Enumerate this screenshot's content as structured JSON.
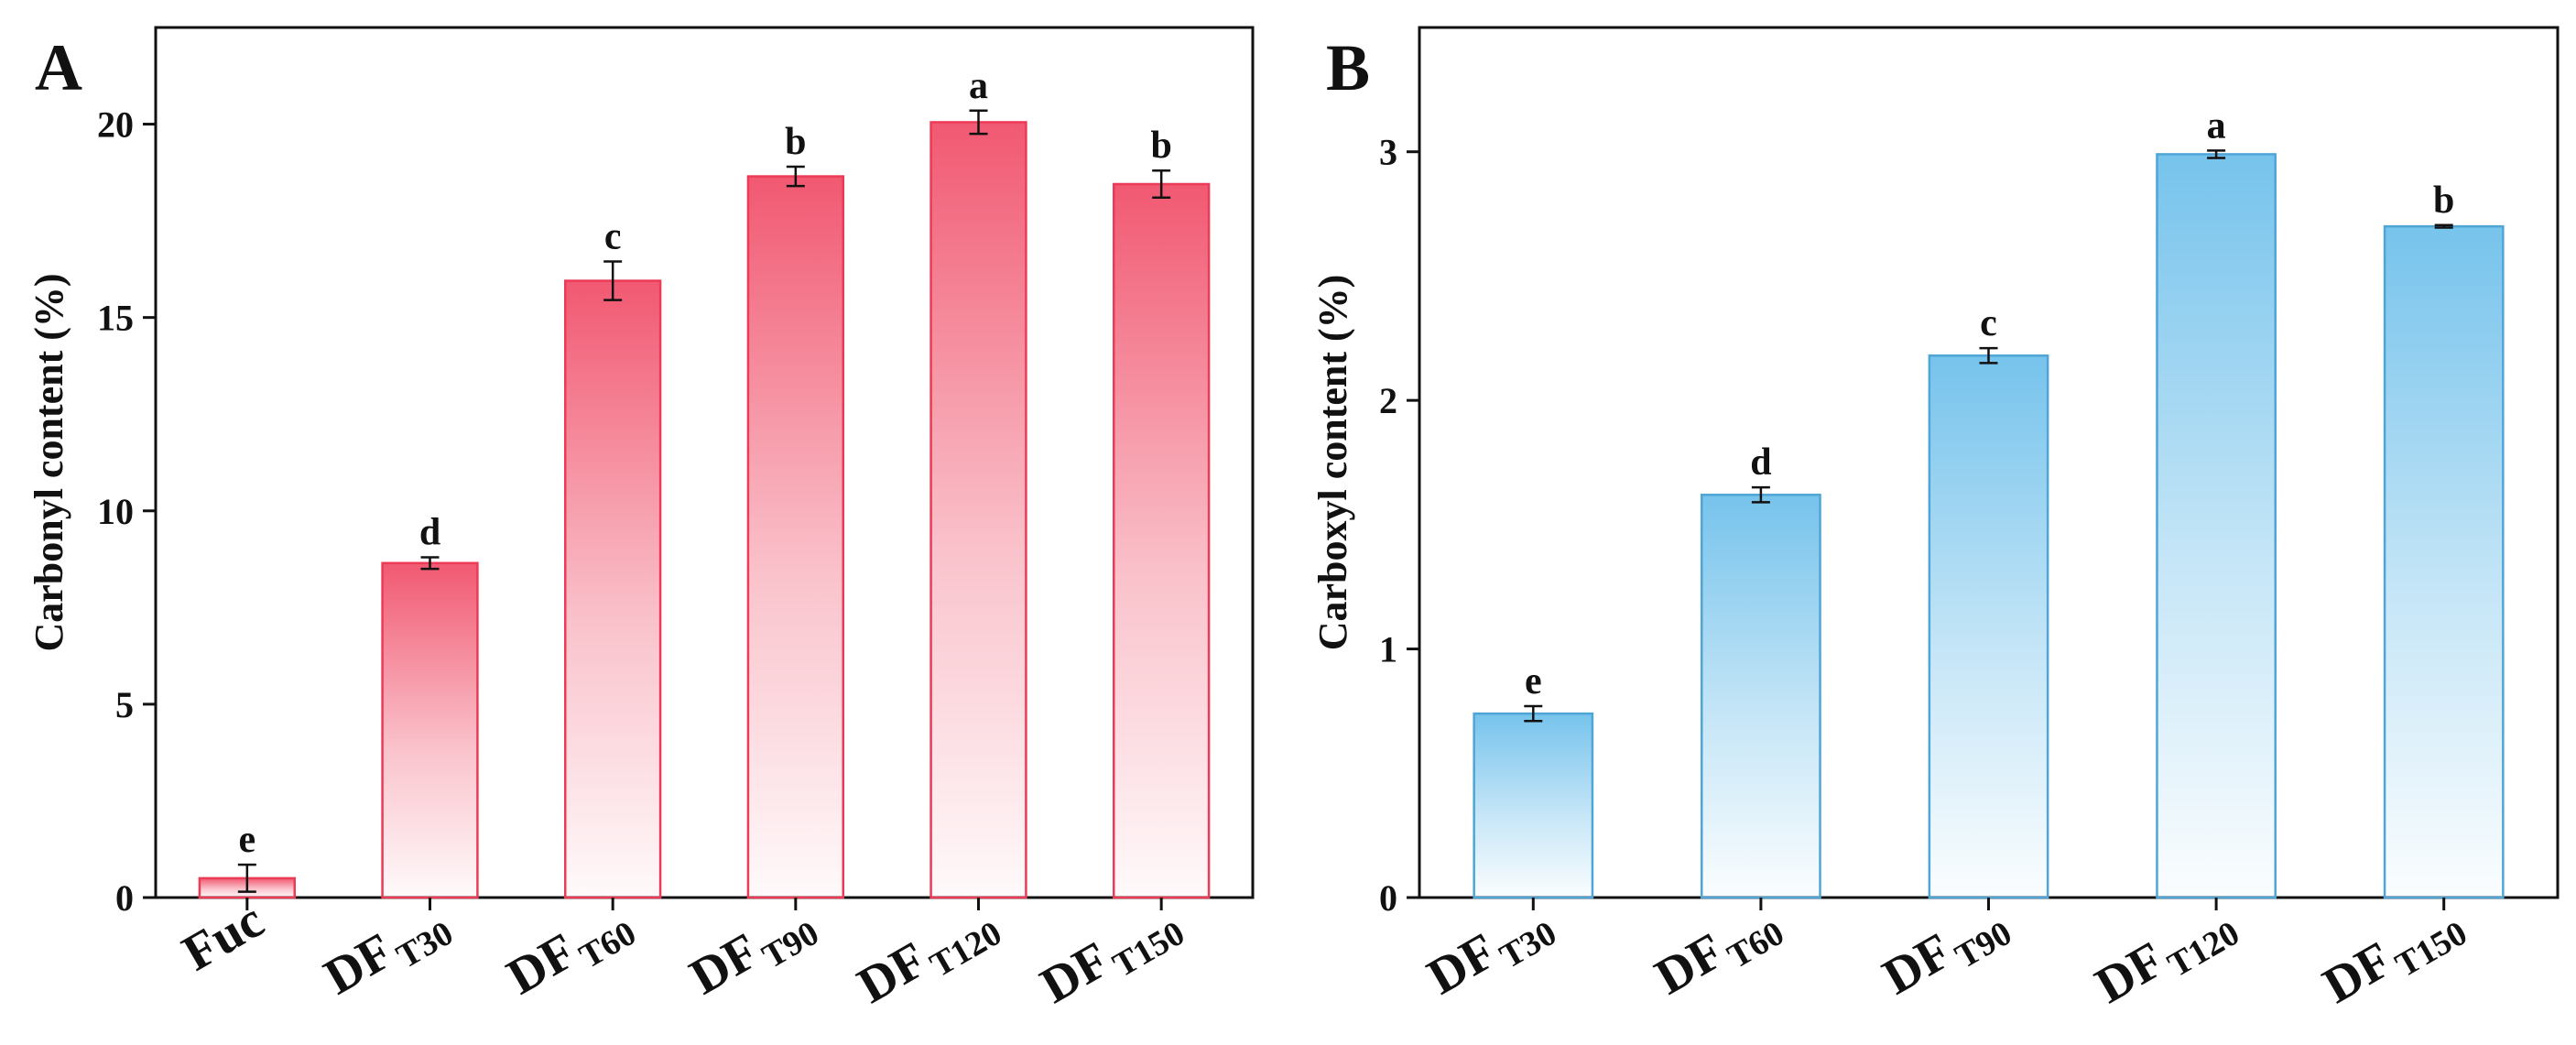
{
  "colors": {
    "panel_a_bar": "#f0506a",
    "panel_a_edge": "#ec3b57",
    "panel_b_bar": "#6fc0eb",
    "panel_b_edge": "#4fa6d6",
    "axis": "#111111"
  },
  "chart_data": [
    {
      "type": "bar",
      "panel_label": "A",
      "ylabel": "Carbonyl content (%)",
      "xlabel": "",
      "ylim": [
        0,
        22.5
      ],
      "yticks": [
        0,
        5,
        10,
        15,
        20
      ],
      "ytick_labels": [
        "0",
        "5",
        "10",
        "15",
        "20"
      ],
      "categories": [
        {
          "main": "Fuc",
          "sub": ""
        },
        {
          "main": "DF",
          "sub": "T30"
        },
        {
          "main": "DF",
          "sub": "T60"
        },
        {
          "main": "DF",
          "sub": "T90"
        },
        {
          "main": "DF",
          "sub": "T120"
        },
        {
          "main": "DF",
          "sub": "T150"
        }
      ],
      "values": [
        0.5,
        8.65,
        15.95,
        18.65,
        20.05,
        18.45
      ],
      "errors": [
        0.35,
        0.15,
        0.5,
        0.25,
        0.3,
        0.35
      ],
      "significance": [
        "e",
        "d",
        "c",
        "b",
        "a",
        "b"
      ]
    },
    {
      "type": "bar",
      "panel_label": "B",
      "ylabel": "Carboxyl content (%)",
      "xlabel": "",
      "ylim": [
        0,
        3.5
      ],
      "yticks": [
        0,
        1,
        2,
        3
      ],
      "ytick_labels": [
        "0",
        "1",
        "2",
        "3"
      ],
      "categories": [
        {
          "main": "DF",
          "sub": "T30"
        },
        {
          "main": "DF",
          "sub": "T60"
        },
        {
          "main": "DF",
          "sub": "T90"
        },
        {
          "main": "DF",
          "sub": "T120"
        },
        {
          "main": "DF",
          "sub": "T150"
        }
      ],
      "values": [
        0.74,
        1.62,
        2.18,
        2.99,
        2.7
      ],
      "errors": [
        0.03,
        0.03,
        0.03,
        0.015,
        0.005
      ],
      "significance": [
        "e",
        "d",
        "c",
        "a",
        "b"
      ]
    }
  ]
}
